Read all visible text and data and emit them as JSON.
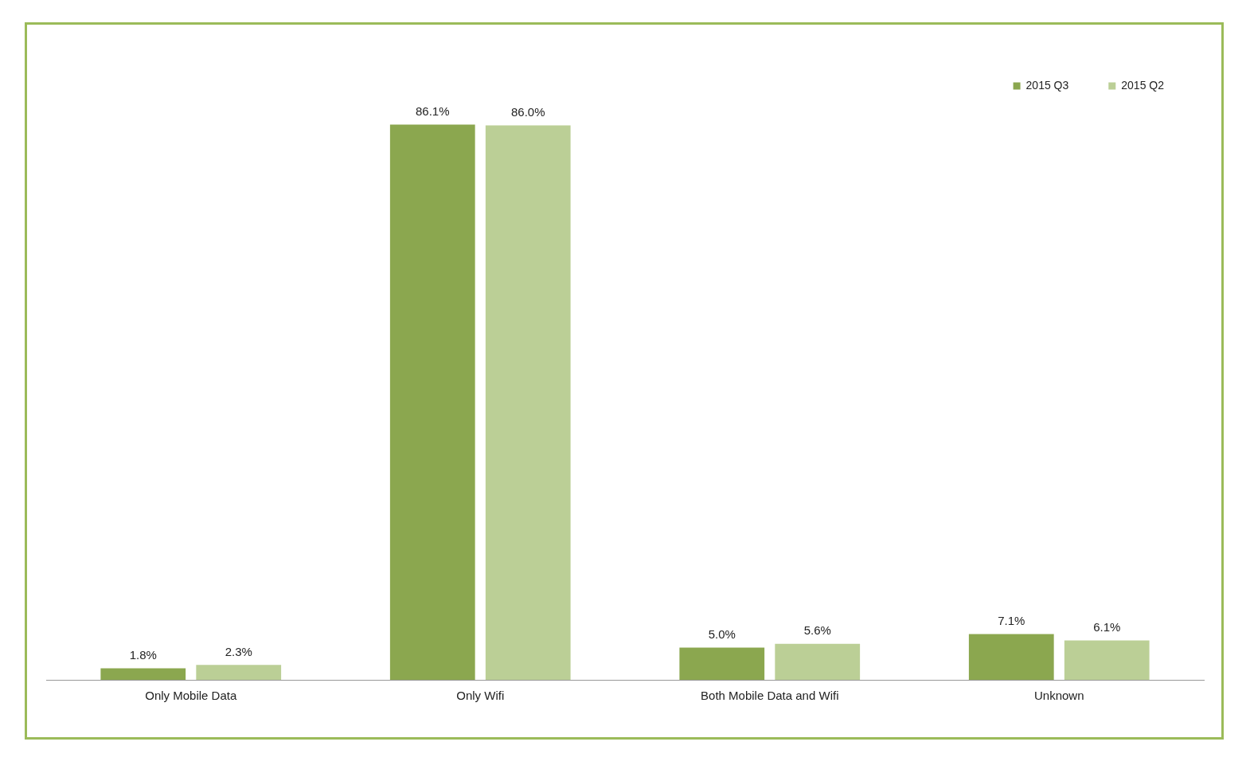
{
  "chart_data": {
    "type": "bar",
    "categories": [
      "Only Mobile Data",
      "Only Wifi",
      "Both Mobile Data and Wifi",
      "Unknown"
    ],
    "series": [
      {
        "name": "2015 Q3",
        "color": "#8ba74f",
        "values": [
          1.8,
          86.1,
          5.0,
          7.1
        ],
        "value_labels": [
          "1.8%",
          "86.1%",
          "5.0%",
          "7.1%"
        ]
      },
      {
        "name": "2015 Q2",
        "color": "#bbcf96",
        "values": [
          2.3,
          86.0,
          5.6,
          6.1
        ],
        "value_labels": [
          "2.3%",
          "86.0%",
          "5.6%",
          "6.1%"
        ]
      }
    ],
    "legend": "top right",
    "grid": false
  }
}
